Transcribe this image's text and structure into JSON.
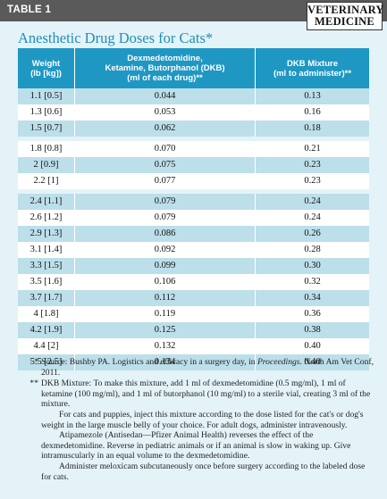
{
  "header": {
    "table_label": "TABLE 1",
    "logo_line1": "VETERINARY",
    "logo_line2": "MEDICINE"
  },
  "title": "Anesthetic Drug Doses for Cats*",
  "table": {
    "columns": [
      {
        "line1": "Weight",
        "line2": "(lb [kg])",
        "line3": ""
      },
      {
        "line1": "Dexmedetomidine,",
        "line2": "Ketamine, Butorphanol (DKB)",
        "line3": "(ml of each drug)**"
      },
      {
        "line1": "DKB Mixture",
        "line2": "(ml to administer)**",
        "line3": ""
      }
    ],
    "rows": [
      {
        "weight": "1.1 [0.5]",
        "dkb": "0.044",
        "mix": "0.13"
      },
      {
        "weight": "1.3 [0.6]",
        "dkb": "0.053",
        "mix": "0.16"
      },
      {
        "weight": "1.5 [0.7]",
        "dkb": "0.062",
        "mix": "0.18"
      },
      {
        "weight": "1.8 [0.8]",
        "dkb": "0.070",
        "mix": "0.21"
      },
      {
        "weight": "2 [0.9]",
        "dkb": "0.075",
        "mix": "0.23"
      },
      {
        "weight": "2.2 [1]",
        "dkb": "0.077",
        "mix": "0.23"
      },
      {
        "weight": "2.4 [1.1]",
        "dkb": "0.079",
        "mix": "0.24"
      },
      {
        "weight": "2.6 [1.2]",
        "dkb": "0.079",
        "mix": "0.24"
      },
      {
        "weight": "2.9 [1.3]",
        "dkb": "0.086",
        "mix": "0.26"
      },
      {
        "weight": "3.1 [1.4]",
        "dkb": "0.092",
        "mix": "0.28"
      },
      {
        "weight": "3.3 [1.5]",
        "dkb": "0.099",
        "mix": "0.30"
      },
      {
        "weight": "3.5 [1.6]",
        "dkb": "0.106",
        "mix": "0.32"
      },
      {
        "weight": "3.7 [1.7]",
        "dkb": "0.112",
        "mix": "0.34"
      },
      {
        "weight": "4 [1.8]",
        "dkb": "0.119",
        "mix": "0.36"
      },
      {
        "weight": "4.2 [1.9]",
        "dkb": "0.125",
        "mix": "0.38"
      },
      {
        "weight": "4.4 [2]",
        "dkb": "0.132",
        "mix": "0.40"
      },
      {
        "weight": "5.5 [2.5]",
        "dkb": "0.134",
        "mix": "0.40"
      }
    ]
  },
  "notes": {
    "source_mark": "*",
    "source_pre": "Source: Bushby PA. Logistics and efficacy in a surgery day, in ",
    "source_italic": "Proceedings",
    "source_post": ". North Am Vet Conf, 2011.",
    "mixture_mark": "**",
    "mixture_text": "DKB Mixture: To make this mixture, add 1 ml of dexmedetomidine (0.5 mg/ml), 1 ml of ketamine (100 mg/ml), and 1 ml of butorphanol (10 mg/ml) to a sterile vial, creating 3 ml of the mixture.",
    "para1": "For cats and puppies, inject this mixture according to the dose listed for the cat's or dog's weight in the large muscle belly of your choice. For adult dogs, administer intravenously.",
    "para2": "Atipamezole (Antisedan—Pfizer Animal Health) reverses the effect of the dexmedetomidine. Reverse in pediatric animals or if an animal is slow in waking up. Give intramuscularly in an equal volume to the dexmedetomidine.",
    "para3": "Administer meloxicam subcutaneously once before surgery according to the labeled dose for cats."
  }
}
